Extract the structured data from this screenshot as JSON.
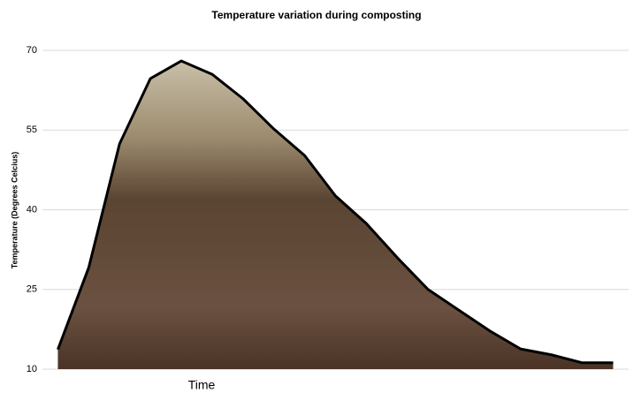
{
  "chart_data": {
    "type": "area",
    "title": "Temperature variation during composting",
    "x_label": "Time",
    "y_label": "Temperature (Degrees Celcius)",
    "categories": [
      null,
      null,
      null,
      null,
      null,
      null,
      null,
      null,
      null,
      null,
      null,
      null,
      null,
      null,
      null,
      null,
      null,
      null,
      null
    ],
    "values": [
      13.7,
      29.1,
      52.4,
      64.7,
      68,
      65.5,
      60.9,
      55.2,
      50.2,
      42.6,
      37.4,
      31,
      25,
      21.1,
      17.2,
      13.8,
      12.7,
      11.2,
      11.2
    ],
    "color": "#000000",
    "ylim": [
      10,
      70
    ],
    "yticks": [
      10,
      25,
      40,
      55,
      70
    ],
    "grid": true
  }
}
